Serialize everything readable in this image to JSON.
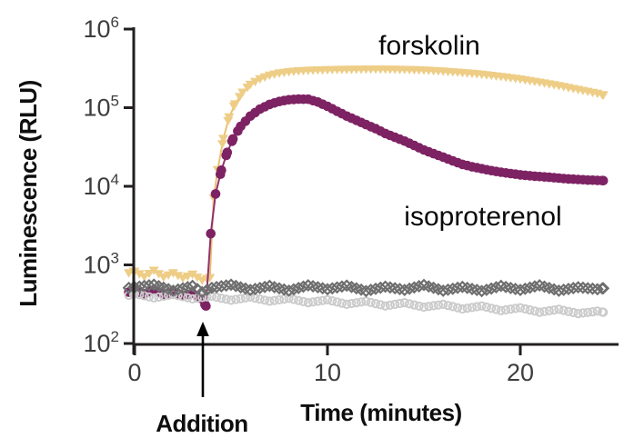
{
  "figure": {
    "background": "#ffffff",
    "axis_color": "#231f20",
    "tick_label_color": "#3d3d3d",
    "arrow_color": "#000000"
  },
  "chart_data": {
    "type": "line",
    "title": "",
    "xlabel": "Time (minutes)",
    "ylabel": "Luminescence (RLU)",
    "y_scale": "log",
    "xlim": [
      -0.3,
      25.1
    ],
    "ylim": [
      100,
      1000000
    ],
    "grid": false,
    "legend_position": "inline-annotations",
    "x_ticks": [
      0,
      10,
      20
    ],
    "y_tick_exponents": [
      2,
      3,
      4,
      5,
      6
    ],
    "y_tick_base": "10",
    "annotations": [
      {
        "text": "forskolin"
      },
      {
        "text": "isoproterenol"
      },
      {
        "text": "Addition",
        "arrow_at_x_min": 3.54
      }
    ],
    "series": [
      {
        "name": "forskolin",
        "marker": "triangle-down",
        "color": "#EECD86",
        "line_color": "#E9C172",
        "line": true,
        "marker_step_min": 0.25,
        "points": [
          [
            -0.3,
            780
          ],
          [
            0,
            820
          ],
          [
            0.5,
            700
          ],
          [
            1,
            840
          ],
          [
            1.5,
            690
          ],
          [
            2,
            780
          ],
          [
            2.5,
            670
          ],
          [
            3,
            750
          ],
          [
            3.5,
            630
          ],
          [
            3.9,
            680
          ],
          [
            4.1,
            7000
          ],
          [
            4.3,
            16000
          ],
          [
            4.6,
            40000
          ],
          [
            4.9,
            75000
          ],
          [
            5.2,
            110000
          ],
          [
            5.6,
            155000
          ],
          [
            6,
            195000
          ],
          [
            6.5,
            230000
          ],
          [
            7,
            255000
          ],
          [
            7.5,
            272000
          ],
          [
            8,
            283000
          ],
          [
            8.5,
            290000
          ],
          [
            9,
            295000
          ],
          [
            10,
            300000
          ],
          [
            11,
            303000
          ],
          [
            12,
            305000
          ],
          [
            13,
            305000
          ],
          [
            14,
            302000
          ],
          [
            15,
            297000
          ],
          [
            16,
            288000
          ],
          [
            17,
            276000
          ],
          [
            18,
            262000
          ],
          [
            19,
            246000
          ],
          [
            20,
            228000
          ],
          [
            21,
            208000
          ],
          [
            22,
            188000
          ],
          [
            23,
            168000
          ],
          [
            24,
            150000
          ],
          [
            24.3,
            143000
          ]
        ]
      },
      {
        "name": "isoproterenol",
        "marker": "circle-filled",
        "color": "#7D2263",
        "line_color": "#943070",
        "line": true,
        "marker_step_min": 0.25,
        "points": [
          [
            -0.3,
            450
          ],
          [
            0,
            470
          ],
          [
            0.5,
            430
          ],
          [
            1,
            480
          ],
          [
            1.5,
            420
          ],
          [
            2,
            455
          ],
          [
            2.5,
            405
          ],
          [
            3,
            435
          ],
          [
            3.4,
            375
          ],
          [
            3.7,
            300
          ],
          [
            3.95,
            2500
          ],
          [
            4.2,
            8000
          ],
          [
            4.5,
            16000
          ],
          [
            4.8,
            27000
          ],
          [
            5.1,
            40000
          ],
          [
            5.5,
            58000
          ],
          [
            6,
            78000
          ],
          [
            6.5,
            96000
          ],
          [
            7,
            110000
          ],
          [
            7.5,
            120000
          ],
          [
            8,
            126000
          ],
          [
            8.5,
            128500
          ],
          [
            9,
            128000
          ],
          [
            9.5,
            118000
          ],
          [
            10,
            104000
          ],
          [
            10.5,
            90000
          ],
          [
            11,
            78000
          ],
          [
            11.5,
            69000
          ],
          [
            12,
            61000
          ],
          [
            12.5,
            54000
          ],
          [
            13,
            47000
          ],
          [
            13.5,
            42000
          ],
          [
            14,
            37500
          ],
          [
            14.5,
            33000
          ],
          [
            15,
            29000
          ],
          [
            15.5,
            26000
          ],
          [
            16,
            23500
          ],
          [
            16.5,
            21000
          ],
          [
            17,
            19000
          ],
          [
            17.5,
            17700
          ],
          [
            18,
            16700
          ],
          [
            18.5,
            15800
          ],
          [
            19,
            15100
          ],
          [
            19.5,
            14500
          ],
          [
            20,
            14000
          ],
          [
            20.5,
            13600
          ],
          [
            21,
            13300
          ],
          [
            21.5,
            13000
          ],
          [
            22,
            12700
          ],
          [
            22.5,
            12400
          ],
          [
            23,
            12200
          ],
          [
            23.5,
            12000
          ],
          [
            24,
            11900
          ],
          [
            24.3,
            11800
          ]
        ]
      },
      {
        "name": "gray-circle-trace",
        "marker": "circle-open",
        "color": "#CBCBCB",
        "line": false,
        "marker_step_min": 0.25,
        "points": [
          [
            -0.3,
            410
          ],
          [
            0,
            430
          ],
          [
            1,
            380
          ],
          [
            2,
            420
          ],
          [
            3,
            370
          ],
          [
            4,
            400
          ],
          [
            5,
            355
          ],
          [
            6,
            390
          ],
          [
            7,
            345
          ],
          [
            8,
            375
          ],
          [
            9,
            330
          ],
          [
            10,
            360
          ],
          [
            11,
            315
          ],
          [
            12,
            345
          ],
          [
            13,
            300
          ],
          [
            14,
            330
          ],
          [
            15,
            290
          ],
          [
            16,
            315
          ],
          [
            17,
            275
          ],
          [
            18,
            300
          ],
          [
            19,
            262
          ],
          [
            20,
            285
          ],
          [
            21,
            250
          ],
          [
            22,
            272
          ],
          [
            23,
            240
          ],
          [
            24,
            258
          ],
          [
            24.3,
            250
          ]
        ]
      },
      {
        "name": "gray-diamond-trace",
        "marker": "diamond-open",
        "color": "#6E6E6E",
        "line": false,
        "marker_step_min": 0.25,
        "points": [
          [
            -0.3,
            510
          ],
          [
            0,
            520
          ],
          [
            1,
            560
          ],
          [
            2,
            470
          ],
          [
            3,
            540
          ],
          [
            3.5,
            450
          ],
          [
            4,
            510
          ],
          [
            5,
            560
          ],
          [
            6,
            480
          ],
          [
            7,
            540
          ],
          [
            8,
            470
          ],
          [
            9,
            550
          ],
          [
            10,
            490
          ],
          [
            11,
            545
          ],
          [
            12,
            465
          ],
          [
            13,
            530
          ],
          [
            14,
            480
          ],
          [
            15,
            555
          ],
          [
            16,
            470
          ],
          [
            17,
            525
          ],
          [
            18,
            465
          ],
          [
            19,
            540
          ],
          [
            20,
            480
          ],
          [
            21,
            550
          ],
          [
            22,
            470
          ],
          [
            23,
            520
          ],
          [
            24,
            490
          ],
          [
            24.3,
            505
          ]
        ]
      }
    ]
  }
}
